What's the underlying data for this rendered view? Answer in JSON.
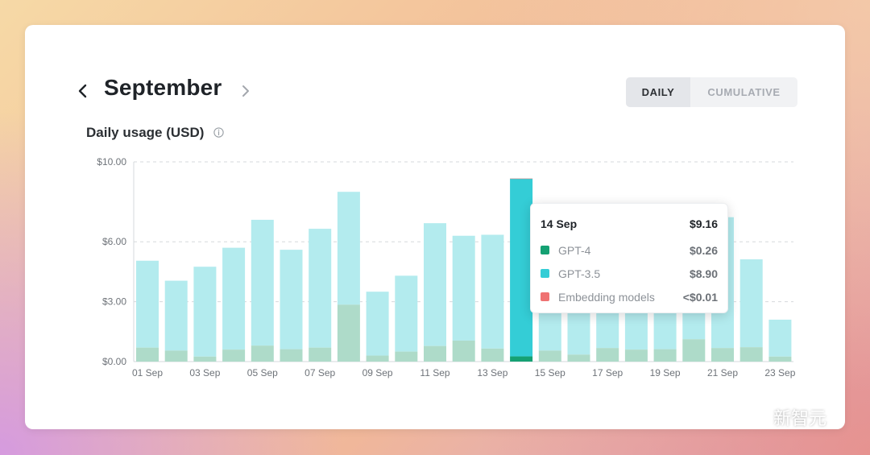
{
  "header": {
    "month": "September",
    "prev_icon": "chevron-left-icon",
    "next_icon": "chevron-right-icon"
  },
  "toggle": {
    "daily": "DAILY",
    "cumulative": "CUMULATIVE",
    "selected": "daily"
  },
  "section": {
    "label": "Daily usage (USD)",
    "info_icon": "info-icon"
  },
  "colors": {
    "gpt35": "#b3ebee",
    "gpt4": "#aedbc9",
    "gpt35_highlight": "#34cdd6",
    "gpt4_highlight": "#15a173",
    "embedding": "#ef7272",
    "grid": "#d6d9dc",
    "axis_text": "#6e7379"
  },
  "tooltip": {
    "date": "14 Sep",
    "total": "$9.16",
    "rows": [
      {
        "name": "GPT-4",
        "value": "$0.26",
        "color": "#15a173"
      },
      {
        "name": "GPT-3.5",
        "value": "$8.90",
        "color": "#34cdd6"
      },
      {
        "name": "Embedding models",
        "value": "<$0.01",
        "color": "#ef7272"
      }
    ]
  },
  "watermark": {
    "text": "新智元",
    "icon": "wechat-icon"
  },
  "chart_data": {
    "type": "bar",
    "stacked": true,
    "title": "Daily usage (USD)",
    "categories": [
      "01 Sep",
      "02 Sep",
      "03 Sep",
      "04 Sep",
      "05 Sep",
      "06 Sep",
      "07 Sep",
      "08 Sep",
      "09 Sep",
      "10 Sep",
      "11 Sep",
      "12 Sep",
      "13 Sep",
      "14 Sep",
      "15 Sep",
      "16 Sep",
      "17 Sep",
      "18 Sep",
      "19 Sep",
      "20 Sep",
      "21 Sep",
      "22 Sep",
      "23 Sep"
    ],
    "x_tick_labels": [
      "01 Sep",
      "03 Sep",
      "05 Sep",
      "07 Sep",
      "09 Sep",
      "11 Sep",
      "13 Sep",
      "15 Sep",
      "17 Sep",
      "19 Sep",
      "21 Sep",
      "23 Sep"
    ],
    "series": [
      {
        "name": "GPT-4",
        "values": [
          0.7,
          0.55,
          0.25,
          0.6,
          0.8,
          0.62,
          0.7,
          2.85,
          0.3,
          0.5,
          0.78,
          1.05,
          0.65,
          0.26,
          0.55,
          0.35,
          0.68,
          0.6,
          0.62,
          1.12,
          0.68,
          0.72,
          0.25
        ]
      },
      {
        "name": "GPT-3.5",
        "values": [
          4.35,
          3.5,
          4.5,
          5.1,
          6.3,
          4.98,
          5.95,
          5.65,
          3.2,
          3.8,
          6.15,
          5.25,
          5.7,
          8.9,
          4.2,
          4.4,
          4.3,
          4.2,
          4.6,
          4.1,
          6.55,
          4.4,
          1.85
        ]
      },
      {
        "name": "Embedding models",
        "values": [
          0,
          0,
          0,
          0,
          0,
          0,
          0,
          0,
          0,
          0,
          0,
          0,
          0,
          0.005,
          0,
          0,
          0,
          0,
          0,
          0,
          0,
          0,
          0
        ]
      }
    ],
    "highlight_index": 13,
    "y_ticks": [
      0,
      3,
      6,
      10
    ],
    "y_tick_labels": [
      "$0.00",
      "$3.00",
      "$6.00",
      "$10.00"
    ],
    "ylim": [
      0,
      10
    ],
    "grid": true
  }
}
